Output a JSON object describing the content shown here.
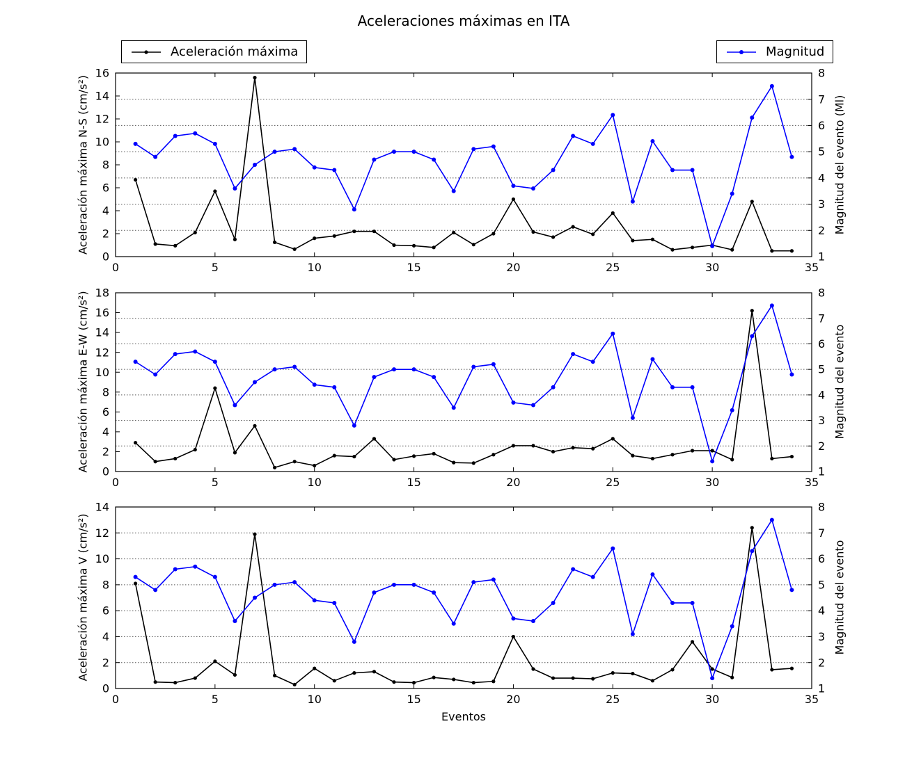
{
  "title": "Aceleraciones máximas en ITA",
  "xlabel": "Eventos",
  "legend": {
    "acceleration": "Aceleración máxima",
    "magnitude": "Magnitud"
  },
  "colors": {
    "acceleration": "#000000",
    "magnitude": "#0000ff",
    "grid": "#555555",
    "frame": "#000000"
  },
  "chart_data": [
    {
      "type": "line",
      "ylabel": "Aceleración máxima N-S (cm/s²)",
      "ylabel_right": "Magnitud del evento (Ml)",
      "xlim": [
        0,
        35
      ],
      "xticks": [
        0,
        5,
        10,
        15,
        20,
        25,
        30,
        35
      ],
      "ylim": [
        0,
        16
      ],
      "yticks": [
        0,
        2,
        4,
        6,
        8,
        10,
        12,
        14,
        16
      ],
      "ylim_right": [
        1,
        8
      ],
      "yticks_right": [
        1,
        2,
        3,
        4,
        5,
        6,
        7,
        8
      ],
      "grid": "horizontal dotted at right-axis ticks",
      "x": [
        1,
        2,
        3,
        4,
        5,
        6,
        7,
        8,
        9,
        10,
        11,
        12,
        13,
        14,
        15,
        16,
        17,
        18,
        19,
        20,
        21,
        22,
        23,
        24,
        25,
        26,
        27,
        28,
        29,
        30,
        31,
        32,
        33,
        34
      ],
      "series": [
        {
          "name": "Aceleración máxima",
          "axis": "left",
          "color": "#000000",
          "values": [
            6.7,
            1.1,
            0.95,
            2.1,
            5.7,
            1.5,
            15.6,
            1.25,
            0.65,
            1.6,
            1.8,
            2.2,
            2.2,
            1.0,
            0.95,
            0.8,
            2.1,
            1.05,
            2.0,
            5.0,
            2.15,
            1.7,
            2.6,
            1.95,
            3.8,
            1.4,
            1.5,
            0.6,
            0.8,
            1.0,
            0.6,
            4.8,
            0.5,
            0.5
          ]
        },
        {
          "name": "Magnitud",
          "axis": "right",
          "color": "#0000ff",
          "values": [
            5.3,
            4.8,
            5.6,
            5.7,
            5.3,
            3.6,
            4.5,
            5.0,
            5.1,
            4.4,
            4.3,
            2.8,
            4.7,
            5.0,
            5.0,
            4.7,
            3.5,
            5.1,
            5.2,
            3.7,
            3.6,
            4.3,
            5.6,
            5.3,
            6.4,
            3.1,
            5.4,
            4.3,
            4.3,
            1.4,
            3.4,
            6.3,
            7.5,
            4.8
          ]
        }
      ]
    },
    {
      "type": "line",
      "ylabel": "Aceleración máxima E-W (cm/s²)",
      "ylabel_right": "Magnitud del evento",
      "xlim": [
        0,
        35
      ],
      "xticks": [
        0,
        5,
        10,
        15,
        20,
        25,
        30,
        35
      ],
      "ylim": [
        0,
        18
      ],
      "yticks": [
        0,
        2,
        4,
        6,
        8,
        10,
        12,
        14,
        16,
        18
      ],
      "ylim_right": [
        1,
        8
      ],
      "yticks_right": [
        1,
        2,
        3,
        4,
        5,
        6,
        7,
        8
      ],
      "grid": "horizontal dotted at right-axis ticks",
      "x": [
        1,
        2,
        3,
        4,
        5,
        6,
        7,
        8,
        9,
        10,
        11,
        12,
        13,
        14,
        15,
        16,
        17,
        18,
        19,
        20,
        21,
        22,
        23,
        24,
        25,
        26,
        27,
        28,
        29,
        30,
        31,
        32,
        33,
        34
      ],
      "series": [
        {
          "name": "Aceleración máxima",
          "axis": "left",
          "color": "#000000",
          "values": [
            2.9,
            1.0,
            1.3,
            2.2,
            8.4,
            1.9,
            4.6,
            0.4,
            1.0,
            0.6,
            1.6,
            1.5,
            3.3,
            1.2,
            1.55,
            1.8,
            0.9,
            0.85,
            1.7,
            2.6,
            2.6,
            2.0,
            2.4,
            2.3,
            3.3,
            1.6,
            1.3,
            1.7,
            2.1,
            2.1,
            1.2,
            16.2,
            1.3,
            1.5
          ]
        },
        {
          "name": "Magnitud",
          "axis": "right",
          "color": "#0000ff",
          "values": [
            5.3,
            4.8,
            5.6,
            5.7,
            5.3,
            3.6,
            4.5,
            5.0,
            5.1,
            4.4,
            4.3,
            2.8,
            4.7,
            5.0,
            5.0,
            4.7,
            3.5,
            5.1,
            5.2,
            3.7,
            3.6,
            4.3,
            5.6,
            5.3,
            6.4,
            3.1,
            5.4,
            4.3,
            4.3,
            1.4,
            3.4,
            6.3,
            7.5,
            4.8
          ]
        }
      ]
    },
    {
      "type": "line",
      "ylabel": "Aceleración máxima V (cm/s²)",
      "ylabel_right": "Magnitud del evento",
      "xlim": [
        0,
        35
      ],
      "xticks": [
        0,
        5,
        10,
        15,
        20,
        25,
        30,
        35
      ],
      "ylim": [
        0,
        14
      ],
      "yticks": [
        0,
        2,
        4,
        6,
        8,
        10,
        12,
        14
      ],
      "ylim_right": [
        1,
        8
      ],
      "yticks_right": [
        1,
        2,
        3,
        4,
        5,
        6,
        7,
        8
      ],
      "grid": "horizontal dotted at right-axis ticks",
      "x": [
        1,
        2,
        3,
        4,
        5,
        6,
        7,
        8,
        9,
        10,
        11,
        12,
        13,
        14,
        15,
        16,
        17,
        18,
        19,
        20,
        21,
        22,
        23,
        24,
        25,
        26,
        27,
        28,
        29,
        30,
        31,
        32,
        33,
        34
      ],
      "series": [
        {
          "name": "Aceleración máxima",
          "axis": "left",
          "color": "#000000",
          "values": [
            8.1,
            0.5,
            0.45,
            0.8,
            2.1,
            1.05,
            11.9,
            1.0,
            0.3,
            1.55,
            0.6,
            1.2,
            1.3,
            0.5,
            0.45,
            0.85,
            0.7,
            0.45,
            0.55,
            4.0,
            1.5,
            0.8,
            0.8,
            0.75,
            1.2,
            1.15,
            0.6,
            1.45,
            3.6,
            1.5,
            0.85,
            12.4,
            1.45,
            1.55
          ]
        },
        {
          "name": "Magnitud",
          "axis": "right",
          "color": "#0000ff",
          "values": [
            5.3,
            4.8,
            5.6,
            5.7,
            5.3,
            3.6,
            4.5,
            5.0,
            5.1,
            4.4,
            4.3,
            2.8,
            4.7,
            5.0,
            5.0,
            4.7,
            3.5,
            5.1,
            5.2,
            3.7,
            3.6,
            4.3,
            5.6,
            5.3,
            6.4,
            3.1,
            5.4,
            4.3,
            4.3,
            1.4,
            3.4,
            6.3,
            7.5,
            4.8
          ]
        }
      ]
    }
  ]
}
